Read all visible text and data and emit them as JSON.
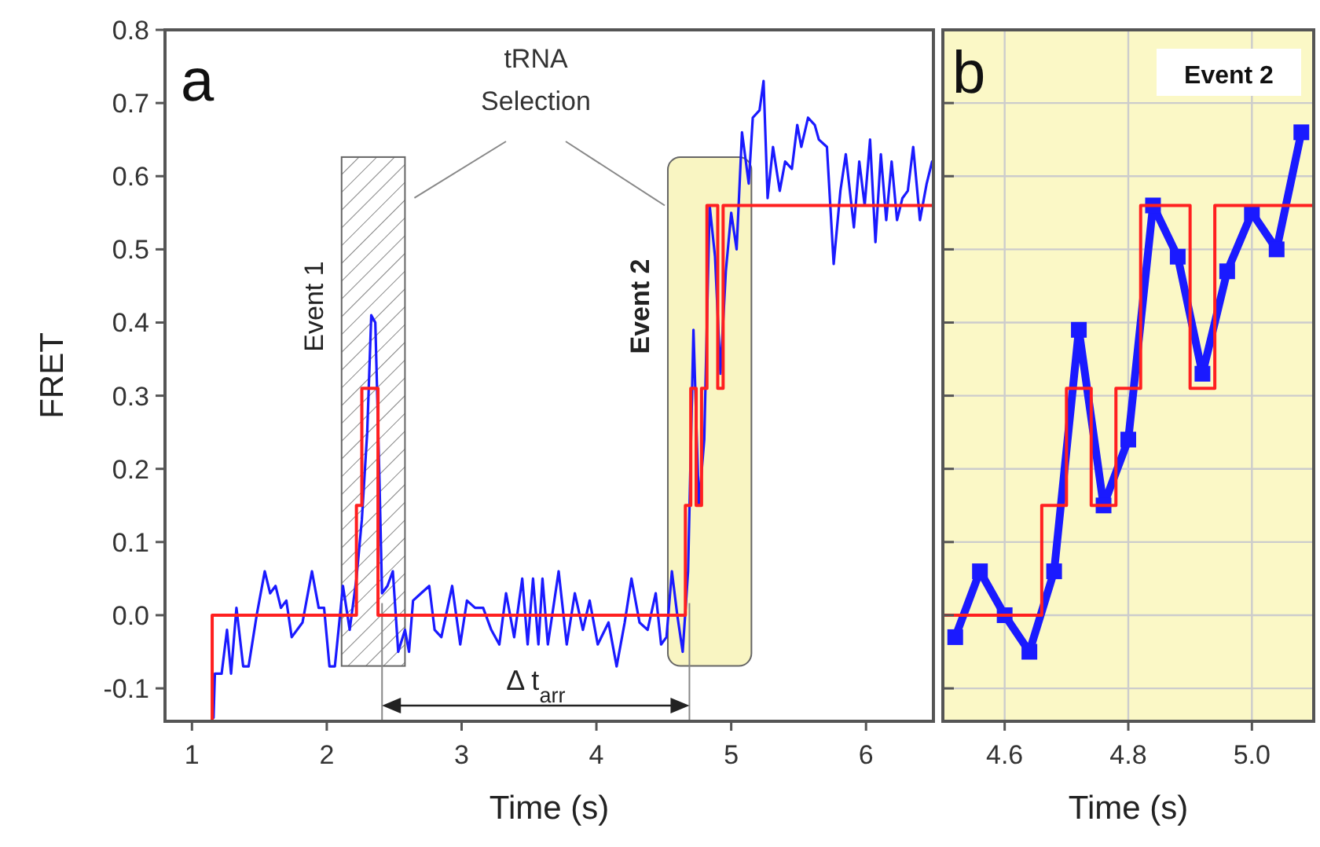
{
  "chart_data": [
    {
      "type": "line",
      "xlabel": "Time (s)",
      "ylabel": "FRET",
      "xlim": [
        0.8,
        6.5
      ],
      "ylim": [
        -0.145,
        0.8
      ],
      "xticks": [
        1,
        2,
        3,
        4,
        5,
        6
      ],
      "yticks": [
        -0.1,
        {
          "value": 0,
          "label": "0.0"
        },
        0.1,
        0.2,
        0.3,
        0.4,
        0.5,
        0.6,
        0.7,
        0.8
      ],
      "annotations": [
        "a",
        {
          "text": "tRNA Selection",
          "x": 4.53,
          "y": 0.56
        },
        "Δ t$_{arr}$"
      ],
      "bands": [
        {
          "axis": "x",
          "from": 2.11,
          "to": 2.58,
          "label": "Event 1",
          "color": "#666666"
        },
        {
          "axis": "x",
          "from": 4.53,
          "to": 5.15,
          "label": "Event 2",
          "color": "#f9f5c2"
        }
      ],
      "ref_lines": [
        {
          "axis": "x",
          "value": 2.41,
          "color": "#888888"
        },
        {
          "axis": "x",
          "value": 4.69,
          "color": "#888888"
        }
      ],
      "series": [
        {
          "type": "line",
          "color": "#1a1aff",
          "x": [
            1.16,
            1.17,
            1.22,
            1.26,
            1.29,
            1.33,
            1.38,
            1.42,
            1.48,
            1.54,
            1.58,
            1.62,
            1.66,
            1.7,
            1.74,
            1.82,
            1.89,
            1.94,
            1.98,
            2.02,
            2.06,
            2.12,
            2.17,
            2.22,
            2.26,
            2.3,
            2.33,
            2.36,
            2.39,
            2.41,
            2.45,
            2.49,
            2.53,
            2.58,
            2.61,
            2.64,
            2.7,
            2.76,
            2.8,
            2.85,
            2.93,
            2.99,
            3.04,
            3.1,
            3.16,
            3.22,
            3.28,
            3.33,
            3.39,
            3.45,
            3.49,
            3.53,
            3.57,
            3.6,
            3.64,
            3.72,
            3.78,
            3.84,
            3.9,
            3.95,
            4.01,
            4.09,
            4.15,
            4.21,
            4.26,
            4.32,
            4.38,
            4.44,
            4.48,
            4.52,
            4.56,
            4.6,
            4.64,
            4.68,
            4.72,
            4.76,
            4.8,
            4.84,
            4.88,
            4.92,
            4.96,
            5.0,
            5.04,
            5.08,
            5.13,
            5.16,
            5.21,
            5.24,
            5.27,
            5.31,
            5.36,
            5.4,
            5.45,
            5.49,
            5.52,
            5.57,
            5.62,
            5.65,
            5.71,
            5.76,
            5.81,
            5.85,
            5.91,
            5.95,
            5.99,
            6.03,
            6.07,
            6.11,
            6.15,
            6.19,
            6.23,
            6.27,
            6.31,
            6.35,
            6.4,
            6.45,
            6.49
          ],
          "values": [
            -0.14,
            -0.08,
            -0.08,
            -0.02,
            -0.08,
            0.01,
            -0.07,
            -0.07,
            0,
            0.06,
            0.03,
            0.04,
            0.01,
            0.02,
            -0.03,
            -0.01,
            0.06,
            0.01,
            0.01,
            -0.07,
            -0.07,
            0.04,
            -0.02,
            0.05,
            0.13,
            0.25,
            0.41,
            0.4,
            0.19,
            0.03,
            0.04,
            0.06,
            -0.05,
            -0.02,
            -0.05,
            0.02,
            0.03,
            0.04,
            -0.02,
            -0.03,
            0.04,
            -0.04,
            0.02,
            0.01,
            0.01,
            -0.02,
            -0.04,
            0.03,
            -0.03,
            0.05,
            -0.04,
            0.05,
            -0.04,
            0.05,
            -0.04,
            0.06,
            -0.04,
            0.03,
            -0.02,
            0.02,
            -0.04,
            -0.01,
            -0.07,
            -0.01,
            0.05,
            -0.01,
            -0.02,
            0.03,
            -0.04,
            -0.03,
            0.06,
            0,
            -0.05,
            0.06,
            0.39,
            0.15,
            0.24,
            0.56,
            0.49,
            0.33,
            0.47,
            0.55,
            0.5,
            0.66,
            0.59,
            0.68,
            0.69,
            0.73,
            0.57,
            0.64,
            0.58,
            0.62,
            0.61,
            0.67,
            0.64,
            0.68,
            0.67,
            0.65,
            0.64,
            0.48,
            0.58,
            0.63,
            0.53,
            0.62,
            0.56,
            0.65,
            0.51,
            0.63,
            0.54,
            0.62,
            0.54,
            0.57,
            0.58,
            0.64,
            0.54,
            0.59,
            0.62
          ]
        },
        {
          "type": "step",
          "color": "#ff2020",
          "x": [
            1.15,
            1.15,
            2.22,
            2.26,
            2.38,
            4.66,
            4.7,
            4.74,
            4.78,
            4.82,
            4.9,
            4.94,
            6.5
          ],
          "values": [
            -0.145,
            0,
            0.15,
            0.31,
            0,
            0.15,
            0.31,
            0.15,
            0.31,
            0.56,
            0.31,
            0.56,
            0.56
          ]
        }
      ]
    },
    {
      "type": "line",
      "xlabel": "Time (s)",
      "xlim": [
        4.5,
        5.1
      ],
      "ylim": [
        -0.145,
        0.8
      ],
      "grid": true,
      "tick_labels": "x",
      "bands": [
        {
          "axis": "x",
          "from": 4.5,
          "to": 5.1,
          "color": "#fbf8c6"
        }
      ],
      "xticks": [
        4.6,
        4.8,
        {
          "value": 5,
          "label": "5.0"
        }
      ],
      "yticks": [
        {
          "value": -0.1,
          "label": null
        },
        {
          "value": 0,
          "label": null
        },
        {
          "value": 0.1,
          "label": null
        },
        {
          "value": 0.2,
          "label": null
        },
        {
          "value": 0.3,
          "label": null
        },
        {
          "value": 0.4,
          "label": null
        },
        {
          "value": 0.5,
          "label": null
        },
        {
          "value": 0.6,
          "label": null
        },
        {
          "value": 0.7,
          "label": null
        }
      ],
      "annotations": [
        "b",
        "Event 2"
      ],
      "series": [
        {
          "type": "line",
          "color": "#1a1aff",
          "marker": "square",
          "x": [
            4.52,
            4.56,
            4.6,
            4.64,
            4.68,
            4.72,
            4.76,
            4.8,
            4.84,
            4.88,
            4.92,
            4.96,
            5.0,
            5.04,
            5.08
          ],
          "values": [
            -0.03,
            0.06,
            0,
            -0.05,
            0.06,
            0.39,
            0.15,
            0.24,
            0.56,
            0.49,
            0.33,
            0.47,
            0.55,
            0.5,
            0.66
          ]
        },
        {
          "type": "step",
          "color": "#ff2020",
          "x": [
            4.5,
            4.66,
            4.7,
            4.74,
            4.78,
            4.82,
            4.9,
            4.94,
            5.1
          ],
          "values": [
            0,
            0.15,
            0.31,
            0.15,
            0.31,
            0.56,
            0.31,
            0.56,
            0.56
          ]
        }
      ]
    }
  ]
}
